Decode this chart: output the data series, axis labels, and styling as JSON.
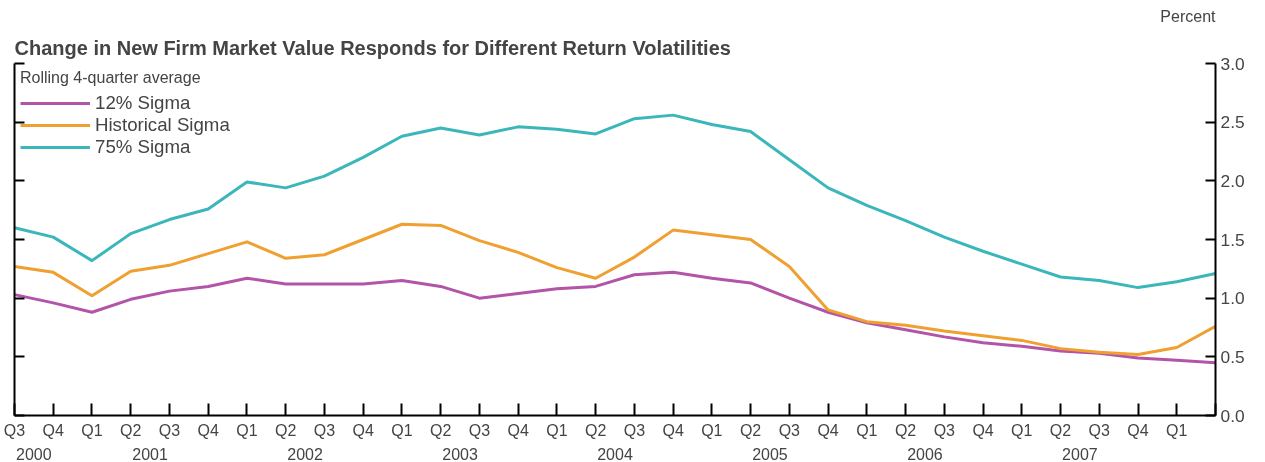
{
  "chart_data": {
    "type": "line",
    "title": "Change in New Firm Market Value Responds for Different Return Volatilities",
    "ylabel": "Percent",
    "legend_title": "Rolling 4-quarter average",
    "legend": "top left",
    "grid": false,
    "line_style": "solid",
    "marker": "none",
    "categories": [
      "Q3",
      "Q4",
      "Q1",
      "Q2",
      "Q3",
      "Q4",
      "Q1",
      "Q2",
      "Q3",
      "Q4",
      "Q1",
      "Q2",
      "Q3",
      "Q4",
      "Q1",
      "Q2",
      "Q3",
      "Q4",
      "Q1",
      "Q2",
      "Q3",
      "Q4",
      "Q1",
      "Q2",
      "Q3",
      "Q4",
      "Q1",
      "Q2",
      "Q3",
      "Q4",
      "Q1",
      null
    ],
    "annotations": [
      "2000",
      "2001",
      "2002",
      "2003",
      "2004",
      "2005",
      "2006",
      "2007"
    ],
    "ylim": [
      0,
      3
    ],
    "yticks": [
      {
        "value": 0,
        "label": "0.0"
      },
      {
        "value": 0.5,
        "label": "0.5"
      },
      {
        "value": 1,
        "label": "1.0"
      },
      {
        "value": 1.5,
        "label": "1.5"
      },
      {
        "value": 2,
        "label": "2.0"
      },
      {
        "value": 2.5,
        "label": "2.5"
      },
      {
        "value": 3,
        "label": "3.0"
      }
    ],
    "series": [
      {
        "name": "12% Sigma",
        "color": "#b254a8",
        "values": [
          1.03,
          0.96,
          0.88,
          0.99,
          1.06,
          1.1,
          1.17,
          1.12,
          1.12,
          1.12,
          1.15,
          1.1,
          1.0,
          1.04,
          1.08,
          1.1,
          1.2,
          1.22,
          1.17,
          1.13,
          1.0,
          0.88,
          0.79,
          0.73,
          0.67,
          0.62,
          0.59,
          0.55,
          0.53,
          0.49,
          0.47,
          0.45
        ]
      },
      {
        "name": "Historical Sigma",
        "color": "#f0a030",
        "values": [
          1.27,
          1.22,
          1.02,
          1.23,
          1.28,
          1.38,
          1.48,
          1.34,
          1.37,
          1.5,
          1.63,
          1.62,
          1.49,
          1.39,
          1.26,
          1.17,
          1.35,
          1.58,
          1.54,
          1.5,
          1.27,
          0.9,
          0.8,
          0.77,
          0.72,
          0.68,
          0.64,
          0.57,
          0.54,
          0.52,
          0.58,
          0.76
        ]
      },
      {
        "name": "75% Sigma",
        "color": "#3bb6bb",
        "values": [
          1.6,
          1.52,
          1.32,
          1.55,
          1.67,
          1.76,
          1.99,
          1.94,
          2.04,
          2.2,
          2.38,
          2.45,
          2.39,
          2.46,
          2.44,
          2.4,
          2.53,
          2.56,
          2.48,
          2.42,
          2.18,
          1.94,
          1.79,
          1.66,
          1.52,
          1.4,
          1.29,
          1.18,
          1.15,
          1.09,
          1.14,
          1.21
        ]
      }
    ]
  }
}
